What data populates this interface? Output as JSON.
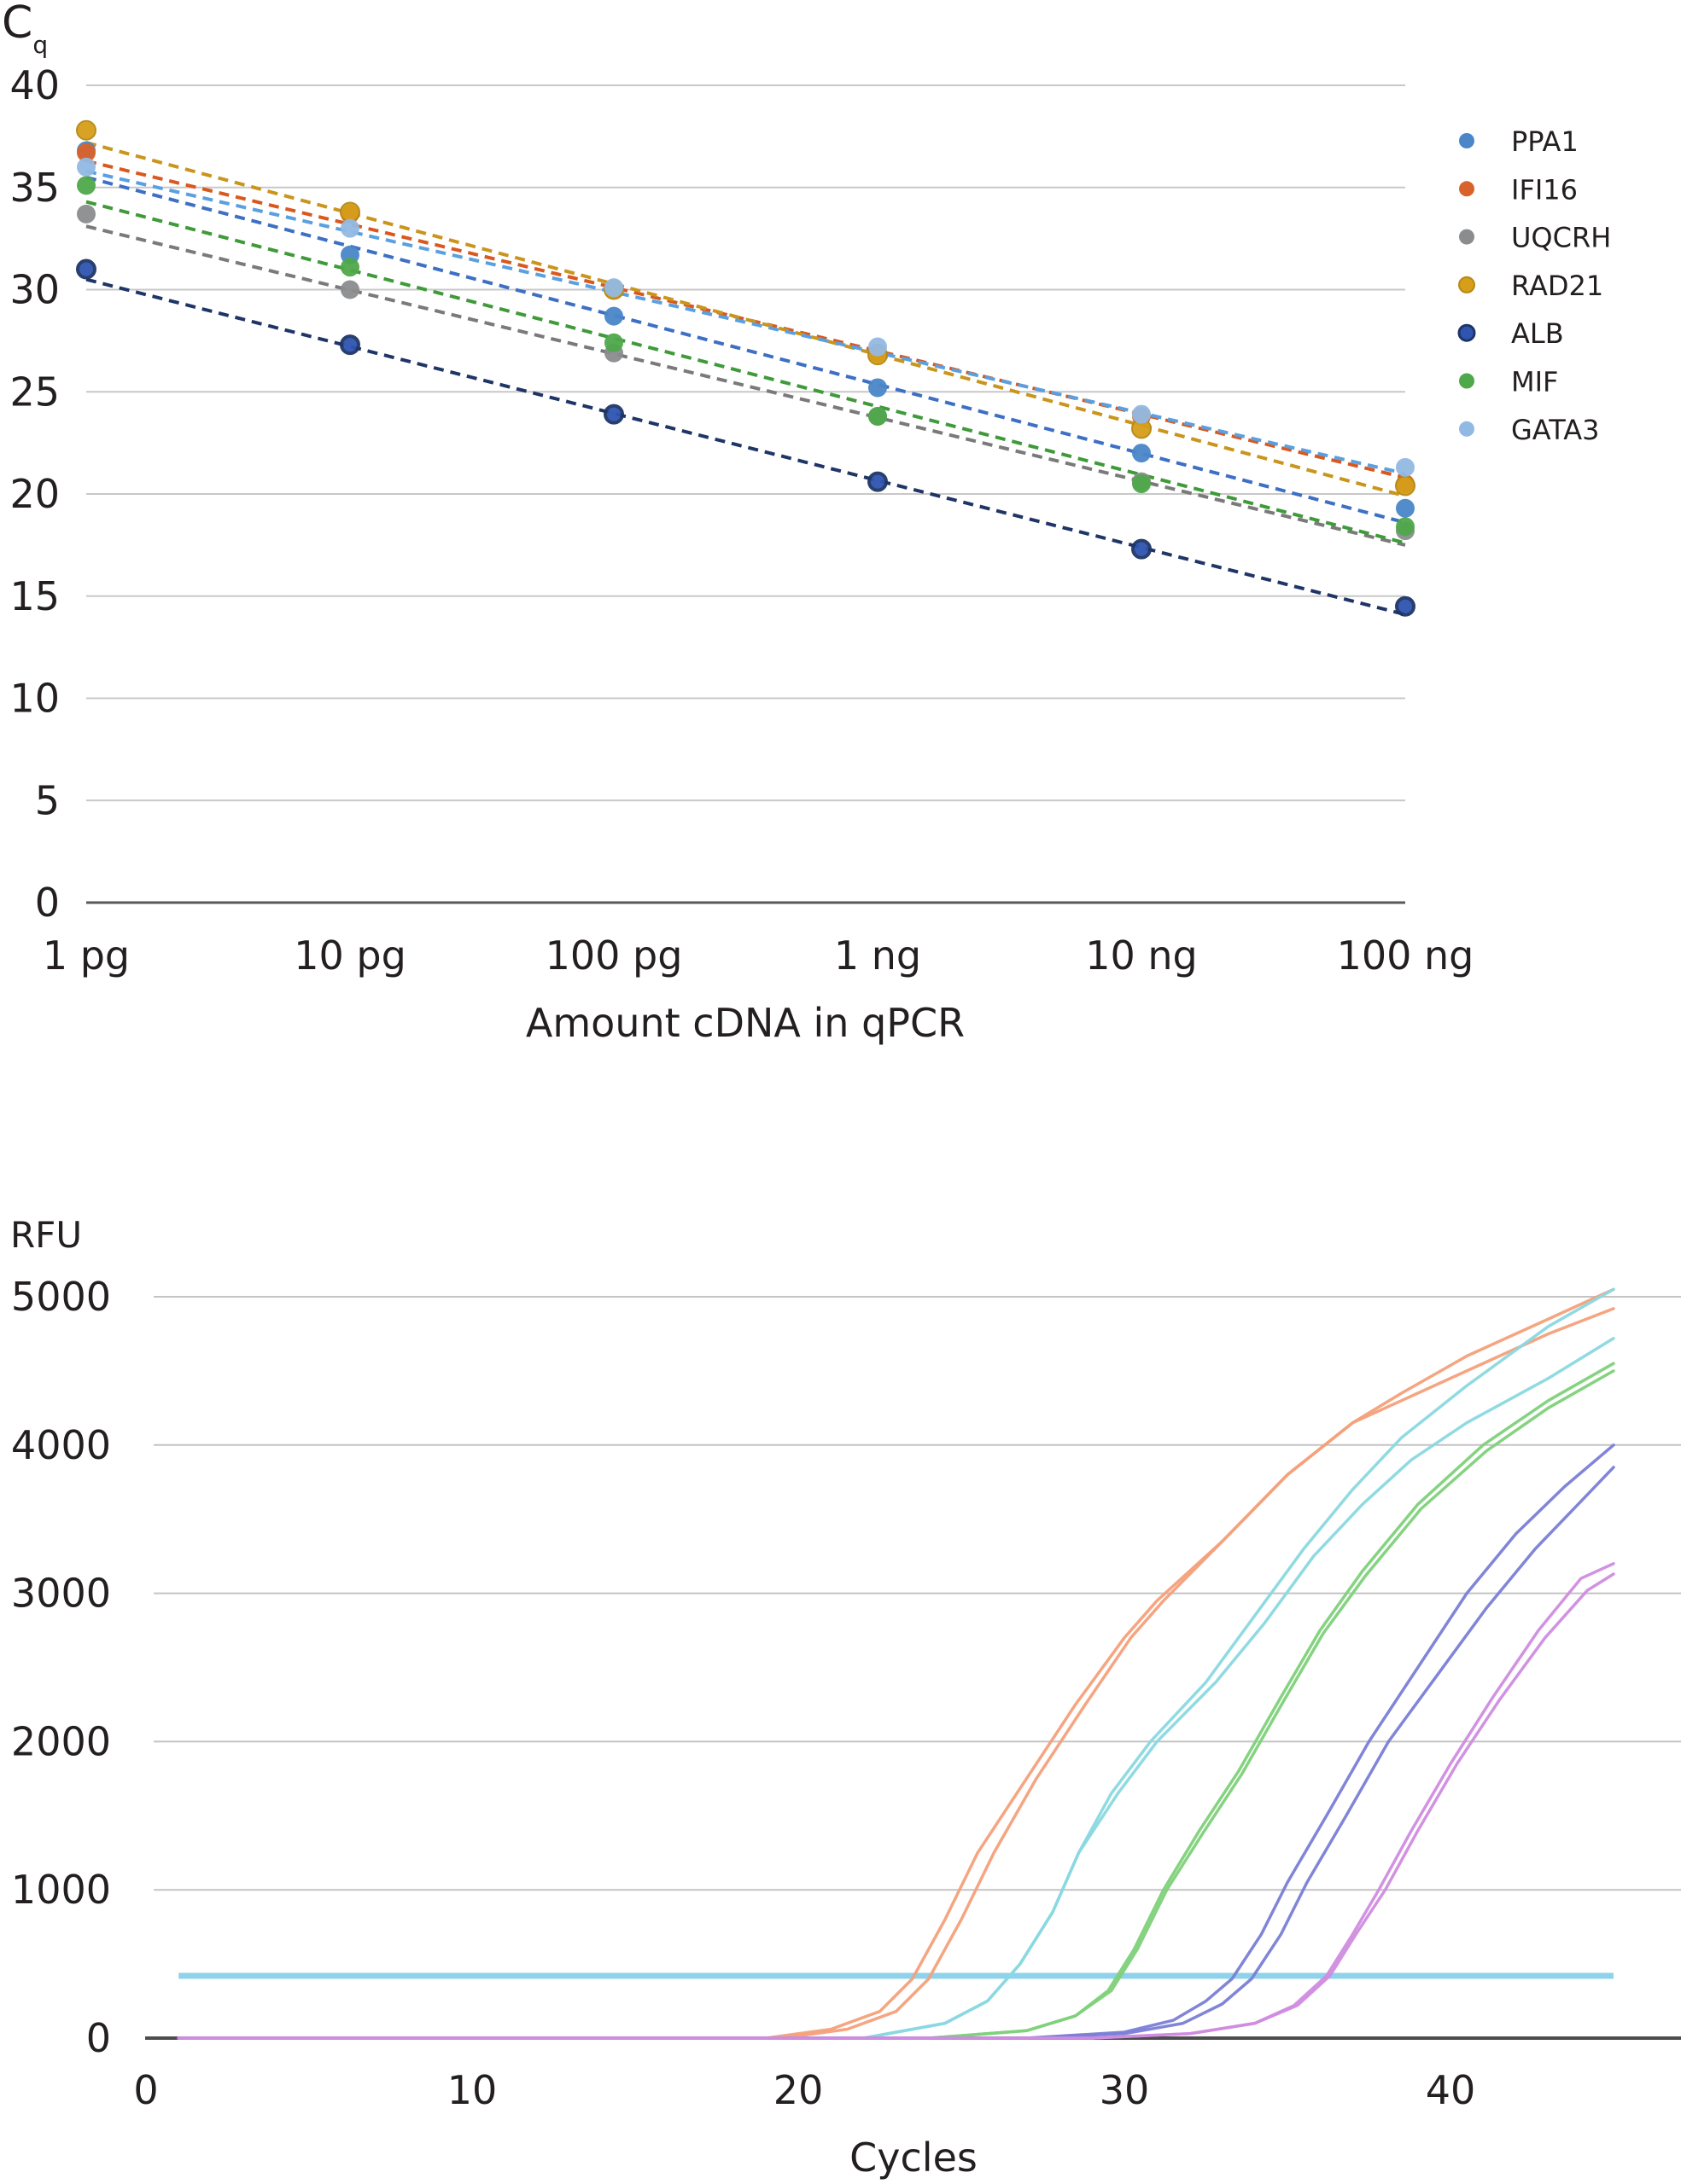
{
  "chart_data": [
    {
      "type": "scatter",
      "title": "",
      "ylabel": "C",
      "ylabel_subscript": "q",
      "xlabel": "Amount cDNA in qPCR",
      "x_scale": "log",
      "categories": [
        "1 pg",
        "10 pg",
        "100 pg",
        "1 ng",
        "10 ng",
        "100 ng"
      ],
      "ylim": [
        0,
        40
      ],
      "yticks": [
        "0",
        "5",
        "10",
        "15",
        "20",
        "25",
        "30",
        "35",
        "40"
      ],
      "grid": true,
      "trendlines": "dashed linear fit per series",
      "legend_position": "right",
      "series": [
        {
          "name": "PPA1",
          "color": "#4a86c8",
          "values": [
            36.8,
            31.7,
            28.7,
            25.2,
            22.0,
            19.3
          ],
          "trend": [
            35.5,
            18.6
          ]
        },
        {
          "name": "IFI16",
          "color": "#d9622b",
          "values": [
            36.7,
            33.7,
            30.0,
            26.9,
            23.8,
            20.5
          ],
          "trend": [
            36.3,
            20.8
          ]
        },
        {
          "name": "UQCRH",
          "color": "#8a8c8e",
          "values": [
            33.7,
            30.0,
            26.9,
            23.8,
            20.6,
            18.2
          ],
          "trend": [
            33.1,
            17.5
          ]
        },
        {
          "name": "RAD21",
          "color": "#d69e1a",
          "values": [
            37.8,
            33.8,
            30.0,
            26.8,
            23.2,
            20.4
          ],
          "trend": [
            37.2,
            19.9
          ]
        },
        {
          "name": "ALB",
          "color": "#2f55b0",
          "values": [
            31.0,
            27.3,
            23.9,
            20.6,
            17.3,
            14.5
          ],
          "trend": [
            30.5,
            14.1
          ]
        },
        {
          "name": "MIF",
          "color": "#4fa84a",
          "values": [
            35.1,
            31.1,
            27.4,
            23.8,
            20.5,
            18.4
          ],
          "trend": [
            34.3,
            17.6
          ]
        },
        {
          "name": "GATA3",
          "color": "#92b9e3",
          "values": [
            36.0,
            33.0,
            30.1,
            27.2,
            23.9,
            21.3
          ],
          "trend": [
            35.8,
            21.0
          ]
        }
      ],
      "trend_colors": {
        "PPA1": "#3d6fc4",
        "IFI16": "#d9581f",
        "UQCRH": "#7a7a7a",
        "RAD21": "#c9951c",
        "ALB": "#1e3566",
        "MIF": "#3f9a3a",
        "GATA3": "#5aa0e0"
      }
    },
    {
      "type": "line",
      "title": "",
      "ylabel": "RFU",
      "xlabel": "Cycles",
      "xlim": [
        0,
        47
      ],
      "ylim": [
        0,
        5000
      ],
      "xticks": [
        "0",
        "10",
        "20",
        "30",
        "40"
      ],
      "yticks": [
        "0",
        "1000",
        "2000",
        "3000",
        "4000",
        "5000"
      ],
      "grid": true,
      "threshold": {
        "value": 420,
        "from": 1,
        "to": 45,
        "color": "#8fd3ea"
      },
      "series": [
        {
          "name": "orange-1",
          "color": "#f4a07a",
          "points": [
            [
              1,
              0
            ],
            [
              19,
              0
            ],
            [
              21,
              60
            ],
            [
              22.5,
              180
            ],
            [
              23.5,
              400
            ],
            [
              24.5,
              800
            ],
            [
              25.5,
              1250
            ],
            [
              27,
              1750
            ],
            [
              28.5,
              2250
            ],
            [
              30,
              2700
            ],
            [
              31,
              2950
            ],
            [
              33,
              3350
            ],
            [
              35,
              3800
            ],
            [
              37,
              4150
            ],
            [
              38.5,
              4350
            ],
            [
              40.5,
              4600
            ],
            [
              43,
              4850
            ],
            [
              45,
              5050
            ]
          ]
        },
        {
          "name": "orange-2",
          "color": "#f4a07a",
          "points": [
            [
              1,
              0
            ],
            [
              19.5,
              0
            ],
            [
              21.5,
              60
            ],
            [
              23,
              180
            ],
            [
              24,
              400
            ],
            [
              25,
              800
            ],
            [
              26,
              1250
            ],
            [
              27.3,
              1750
            ],
            [
              28.8,
              2250
            ],
            [
              30.2,
              2700
            ],
            [
              31.2,
              2950
            ],
            [
              33,
              3350
            ],
            [
              35,
              3800
            ],
            [
              37,
              4150
            ],
            [
              38.5,
              4300
            ],
            [
              40.5,
              4500
            ],
            [
              43,
              4750
            ],
            [
              45,
              4920
            ]
          ]
        },
        {
          "name": "cyan-1",
          "color": "#8ad8e0",
          "points": [
            [
              1,
              0
            ],
            [
              22,
              0
            ],
            [
              24.5,
              100
            ],
            [
              25.8,
              250
            ],
            [
              26.8,
              500
            ],
            [
              27.8,
              850
            ],
            [
              28.6,
              1250
            ],
            [
              29.6,
              1650
            ],
            [
              30.8,
              2000
            ],
            [
              32.5,
              2400
            ],
            [
              34,
              2850
            ],
            [
              35.5,
              3300
            ],
            [
              37,
              3700
            ],
            [
              38.5,
              4050
            ],
            [
              40.5,
              4400
            ],
            [
              43,
              4800
            ],
            [
              45,
              5050
            ]
          ]
        },
        {
          "name": "cyan-2",
          "color": "#8ad8e0",
          "points": [
            [
              1,
              0
            ],
            [
              22,
              0
            ],
            [
              24.5,
              100
            ],
            [
              25.8,
              250
            ],
            [
              26.8,
              500
            ],
            [
              27.8,
              850
            ],
            [
              28.6,
              1250
            ],
            [
              29.8,
              1650
            ],
            [
              31,
              2000
            ],
            [
              32.8,
              2400
            ],
            [
              34.3,
              2800
            ],
            [
              35.8,
              3250
            ],
            [
              37.3,
              3600
            ],
            [
              38.8,
              3900
            ],
            [
              40.5,
              4150
            ],
            [
              43,
              4450
            ],
            [
              45,
              4720
            ]
          ]
        },
        {
          "name": "green-1",
          "color": "#7ed17a",
          "points": [
            [
              1,
              0
            ],
            [
              24,
              0
            ],
            [
              27,
              50
            ],
            [
              28.5,
              150
            ],
            [
              29.5,
              320
            ],
            [
              30.3,
              600
            ],
            [
              31.2,
              1000
            ],
            [
              32.3,
              1400
            ],
            [
              33.5,
              1800
            ],
            [
              34.8,
              2300
            ],
            [
              36,
              2750
            ],
            [
              37.3,
              3150
            ],
            [
              39,
              3600
            ],
            [
              41,
              4000
            ],
            [
              43,
              4300
            ],
            [
              45,
              4550
            ]
          ]
        },
        {
          "name": "green-2",
          "color": "#7ed17a",
          "points": [
            [
              1,
              0
            ],
            [
              24,
              0
            ],
            [
              27,
              50
            ],
            [
              28.5,
              150
            ],
            [
              29.6,
              320
            ],
            [
              30.4,
              600
            ],
            [
              31.3,
              1000
            ],
            [
              32.4,
              1380
            ],
            [
              33.6,
              1780
            ],
            [
              34.9,
              2280
            ],
            [
              36.1,
              2730
            ],
            [
              37.4,
              3120
            ],
            [
              39.1,
              3570
            ],
            [
              41.1,
              3960
            ],
            [
              43,
              4250
            ],
            [
              45,
              4500
            ]
          ]
        },
        {
          "name": "blue-1",
          "color": "#7a7ed6",
          "points": [
            [
              1,
              0
            ],
            [
              27,
              0
            ],
            [
              30,
              40
            ],
            [
              31.5,
              120
            ],
            [
              32.5,
              250
            ],
            [
              33.3,
              400
            ],
            [
              34.2,
              700
            ],
            [
              35,
              1050
            ],
            [
              36.2,
              1500
            ],
            [
              37.5,
              2000
            ],
            [
              39,
              2500
            ],
            [
              40.5,
              3000
            ],
            [
              42,
              3400
            ],
            [
              43.5,
              3720
            ],
            [
              45,
              4000
            ]
          ]
        },
        {
          "name": "blue-2",
          "color": "#7a7ed6",
          "points": [
            [
              1,
              0
            ],
            [
              27,
              0
            ],
            [
              30,
              30
            ],
            [
              31.8,
              100
            ],
            [
              33,
              230
            ],
            [
              33.9,
              400
            ],
            [
              34.8,
              700
            ],
            [
              35.6,
              1050
            ],
            [
              36.8,
              1500
            ],
            [
              38.1,
              2000
            ],
            [
              39.6,
              2450
            ],
            [
              41.1,
              2900
            ],
            [
              42.6,
              3300
            ],
            [
              44,
              3620
            ],
            [
              45,
              3850
            ]
          ]
        },
        {
          "name": "magenta-1",
          "color": "#d08ce0",
          "points": [
            [
              1,
              0
            ],
            [
              29,
              0
            ],
            [
              32,
              30
            ],
            [
              34,
              100
            ],
            [
              35.2,
              220
            ],
            [
              36.2,
              420
            ],
            [
              37,
              700
            ],
            [
              37.8,
              1000
            ],
            [
              38.8,
              1400
            ],
            [
              40,
              1850
            ],
            [
              41.3,
              2300
            ],
            [
              42.7,
              2750
            ],
            [
              44,
              3100
            ],
            [
              45,
              3200
            ]
          ]
        },
        {
          "name": "magenta-2",
          "color": "#d08ce0",
          "points": [
            [
              1,
              0
            ],
            [
              29,
              0
            ],
            [
              32,
              30
            ],
            [
              34,
              100
            ],
            [
              35.3,
              220
            ],
            [
              36.3,
              420
            ],
            [
              37.1,
              700
            ],
            [
              38,
              1000
            ],
            [
              39,
              1400
            ],
            [
              40.2,
              1850
            ],
            [
              41.5,
              2280
            ],
            [
              42.9,
              2700
            ],
            [
              44.2,
              3020
            ],
            [
              45,
              3130
            ]
          ]
        }
      ]
    }
  ]
}
